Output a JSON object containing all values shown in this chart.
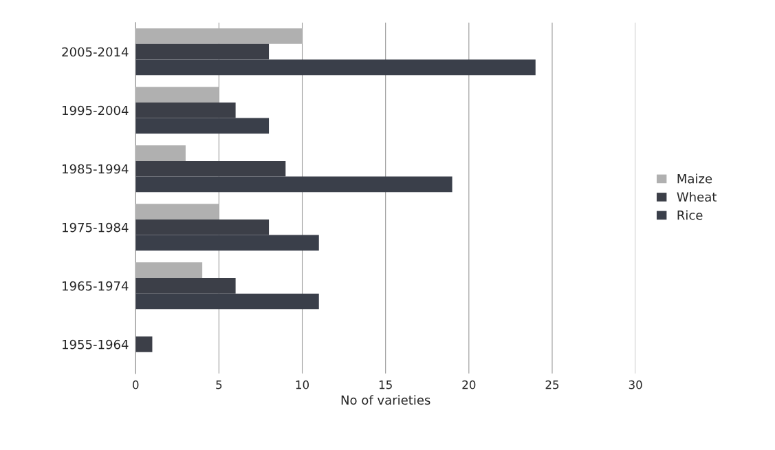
{
  "chart_data": {
    "type": "bar",
    "orientation": "horizontal",
    "xlabel": "No of varieties",
    "categories": [
      "2005-2014",
      "1995-2004",
      "1985-1994",
      "1975-1984",
      "1965-1974",
      "1955-1964"
    ],
    "series": [
      {
        "name": "Maize",
        "color": "#b0b0b0",
        "values": [
          10,
          5,
          3,
          5,
          4,
          null
        ]
      },
      {
        "name": "Wheat",
        "color": "#3c3f48",
        "values": [
          8,
          6,
          9,
          8,
          6,
          1
        ]
      },
      {
        "name": "Rice",
        "color": "#3a3f4a",
        "values": [
          24,
          8,
          19,
          11,
          11,
          null
        ]
      }
    ],
    "xlim": [
      0,
      30
    ],
    "xticks": [
      0,
      5,
      10,
      15,
      20,
      25,
      30
    ],
    "grid": "x",
    "legend": "right"
  }
}
